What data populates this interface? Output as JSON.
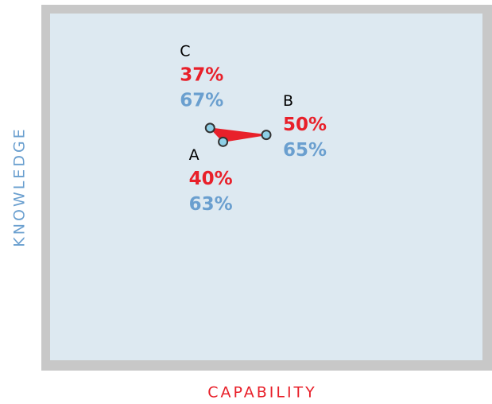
{
  "chart_data": {
    "type": "scatter",
    "xlabel": "CAPABILITY",
    "ylabel": "KNOWLEDGE",
    "xlim": [
      0,
      100
    ],
    "ylim": [
      0,
      100
    ],
    "labels": [
      "A",
      "B",
      "C"
    ],
    "x": [
      40,
      50,
      37
    ],
    "x_labels": [
      "40%",
      "50%",
      "37%"
    ],
    "values": [
      63,
      65,
      67
    ],
    "value_labels": [
      "63%",
      "65%",
      "67%"
    ],
    "color": "#e8202a",
    "point_color": "#8ecfe6",
    "x_label_color": "#e8202a",
    "value_label_color": "#6a9fcf"
  }
}
